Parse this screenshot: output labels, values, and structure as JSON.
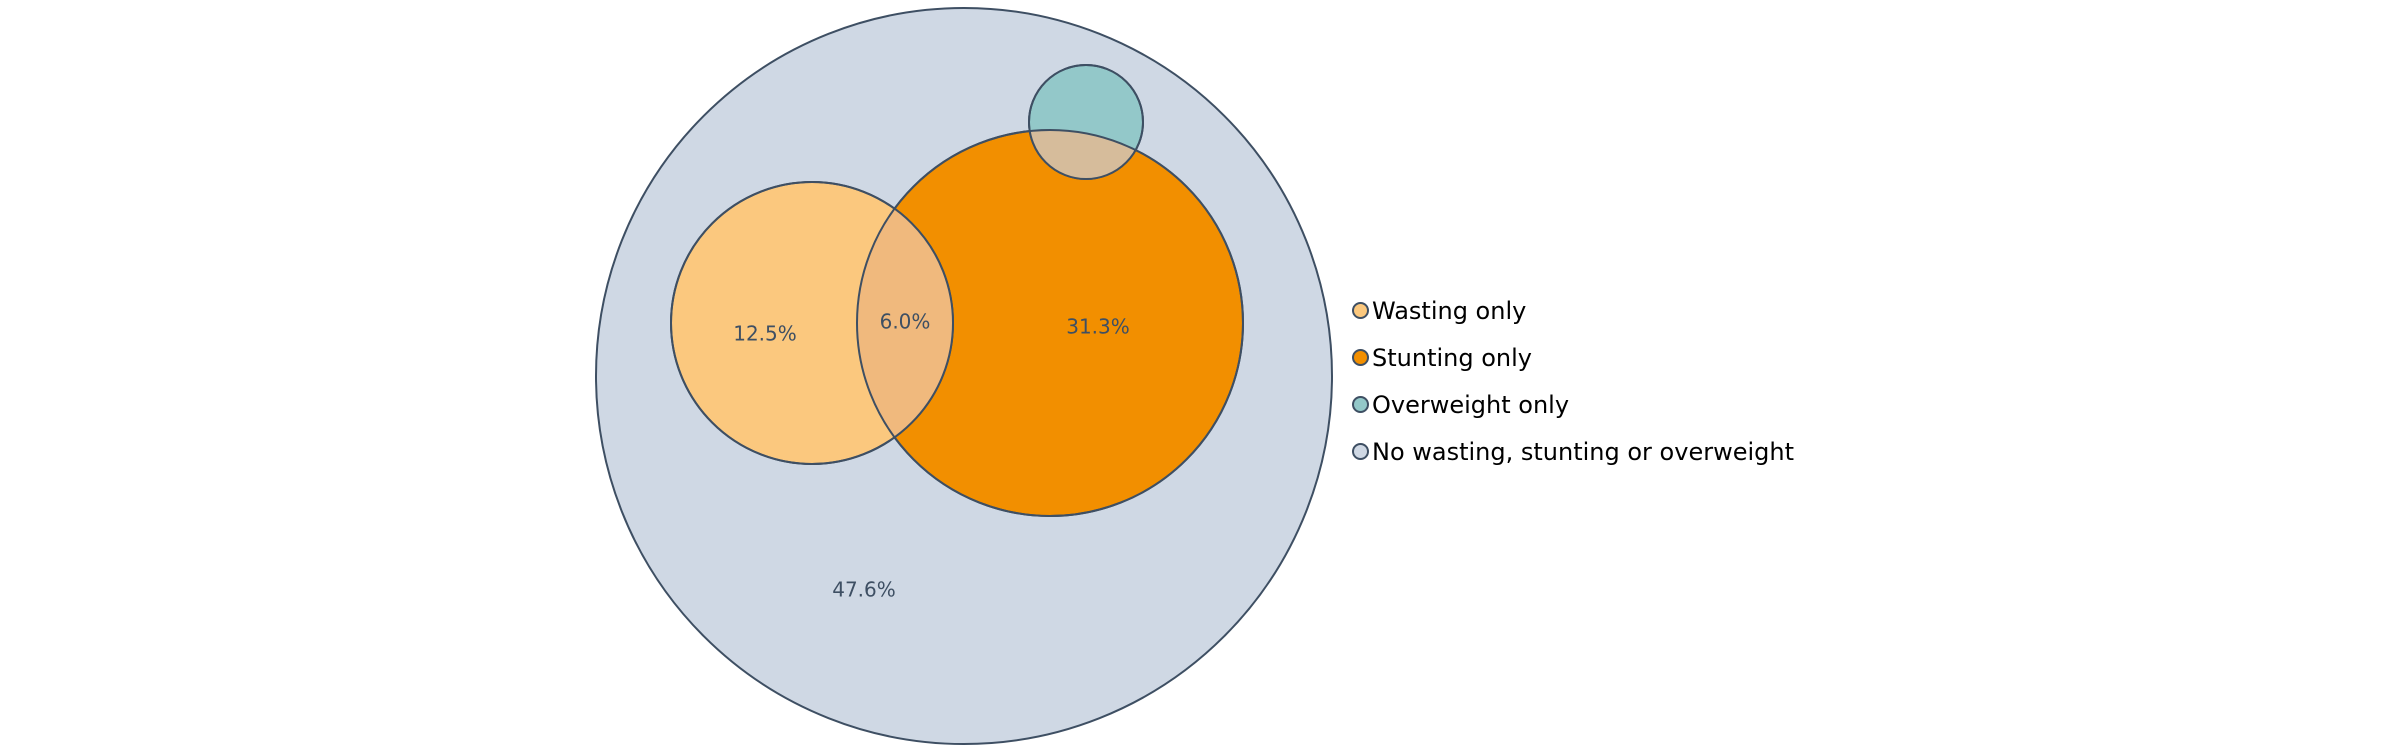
{
  "diagram": {
    "type": "nested-euler-diagram",
    "sets": [
      {
        "id": "population",
        "legend_label": "No wasting, stunting or overweight",
        "color": "#cfd8e4",
        "region_label": "47.6%",
        "value": 47.6
      },
      {
        "id": "wasting",
        "legend_label": "Wasting only",
        "color": "#fbc87e",
        "region_label": "12.5%",
        "value": 12.5
      },
      {
        "id": "stunting",
        "legend_label": "Stunting only",
        "color": "#f28f00",
        "region_label": "31.3%",
        "value": 31.3
      },
      {
        "id": "overweight",
        "legend_label": "Overweight only",
        "color": "#93c8c9",
        "region_label": "",
        "value": null
      }
    ],
    "overlaps": [
      {
        "between": [
          "wasting",
          "stunting"
        ],
        "color": "#f0b97d",
        "region_label": "6.0%",
        "value": 6.0
      },
      {
        "between": [
          "overweight",
          "stunting"
        ],
        "color": "#d6bc9b",
        "region_label": "",
        "value": null
      }
    ],
    "stroke_color": "#3e4f63"
  },
  "legend": {
    "items": [
      {
        "label": "Wasting only",
        "color": "#fbc87e"
      },
      {
        "label": "Stunting only",
        "color": "#f28f00"
      },
      {
        "label": "Overweight only",
        "color": "#93c8c9"
      },
      {
        "label": "No wasting, stunting or overweight",
        "color": "#cfd8e4"
      }
    ]
  }
}
